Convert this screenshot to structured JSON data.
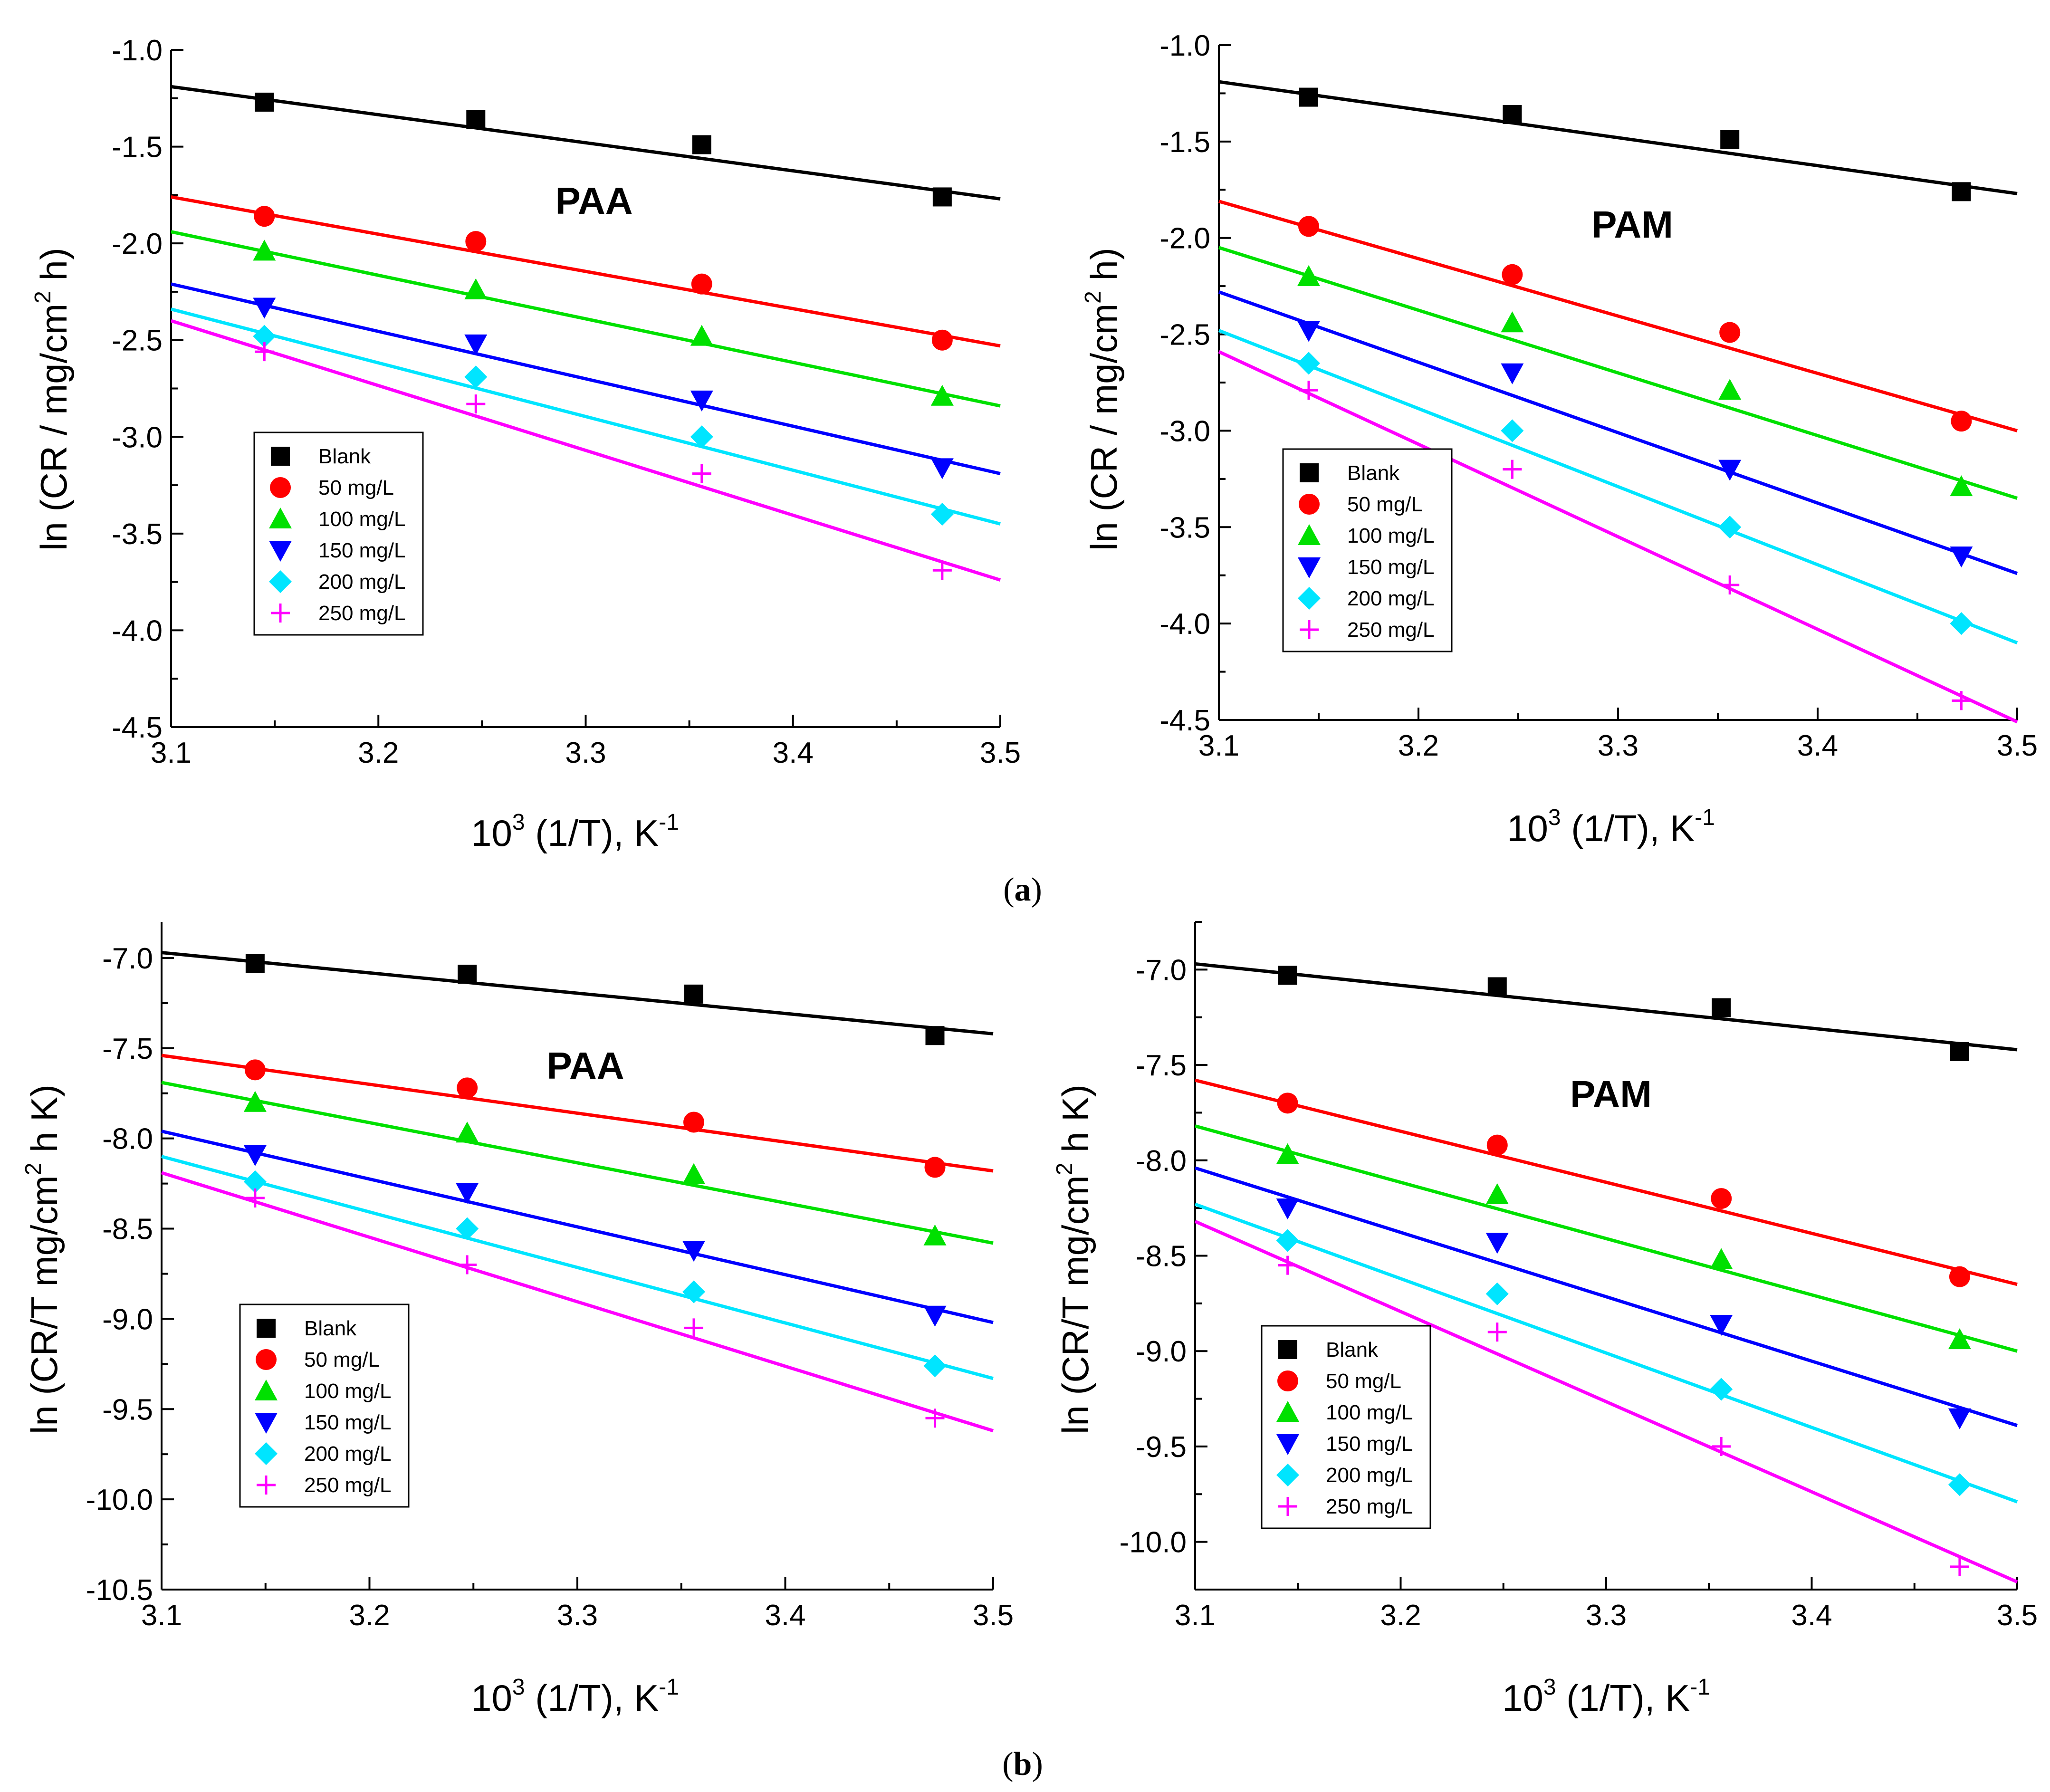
{
  "captions": [
    "a",
    "b"
  ],
  "legend": [
    "Blank",
    "50 mg/L",
    "100 mg/L",
    "150 mg/L",
    "200 mg/L",
    "250 mg/L"
  ],
  "colors": {
    "Blank": "#000000",
    "50 mg/L": "#ff0000",
    "100 mg/L": "#00e000",
    "150 mg/L": "#0000ff",
    "200 mg/L": "#00e5ff",
    "250 mg/L": "#ff00ff"
  },
  "markers": {
    "Blank": "square",
    "50 mg/L": "circle",
    "100 mg/L": "triangle-up",
    "150 mg/L": "triangle-down",
    "200 mg/L": "diamond",
    "250 mg/L": "plus"
  },
  "chart_data": [
    {
      "id": "a-paa",
      "type": "scatter",
      "title": "PAA",
      "xlabel": "10^3 (1/T), K^-1",
      "ylabel": "ln (CR / mg/cm^2 h)",
      "xlim": [
        3.1,
        3.5
      ],
      "ylim": [
        -4.5,
        -1.0
      ],
      "xticks": [
        "3.1",
        "3.2",
        "3.3",
        "3.4",
        "3.5"
      ],
      "yticks": [
        "-1.0",
        "-1.5",
        "-2.0",
        "-2.5",
        "-3.0",
        "-3.5",
        "-4.0",
        "-4.5"
      ],
      "x": [
        3.145,
        3.247,
        3.356,
        3.472
      ],
      "series": [
        {
          "name": "Blank",
          "values": [
            -1.27,
            -1.36,
            -1.49,
            -1.76
          ],
          "fit": [
            -1.19,
            -1.77
          ]
        },
        {
          "name": "50 mg/L",
          "values": [
            -1.86,
            -1.99,
            -2.21,
            -2.5
          ],
          "fit": [
            -1.76,
            -2.53
          ]
        },
        {
          "name": "100 mg/L",
          "values": [
            -2.04,
            -2.24,
            -2.48,
            -2.79
          ],
          "fit": [
            -1.94,
            -2.84
          ]
        },
        {
          "name": "150 mg/L",
          "values": [
            -2.33,
            -2.52,
            -2.81,
            -3.16
          ],
          "fit": [
            -2.21,
            -3.19
          ]
        },
        {
          "name": "200 mg/L",
          "values": [
            -2.48,
            -2.69,
            -3.0,
            -3.4
          ],
          "fit": [
            -2.34,
            -3.45
          ]
        },
        {
          "name": "250 mg/L",
          "values": [
            -2.56,
            -2.83,
            -3.19,
            -3.69
          ],
          "fit": [
            -2.4,
            -3.74
          ]
        }
      ]
    },
    {
      "id": "a-pam",
      "type": "scatter",
      "title": "PAM",
      "xlabel": "10^3 (1/T), K^-1",
      "ylabel": "ln (CR / mg/cm^2 h)",
      "xlim": [
        3.1,
        3.5
      ],
      "ylim": [
        -4.5,
        -1.0
      ],
      "xticks": [
        "3.1",
        "3.2",
        "3.3",
        "3.4",
        "3.5"
      ],
      "yticks": [
        "-1.0",
        "-1.5",
        "-2.0",
        "-2.5",
        "-3.0",
        "-3.5",
        "-4.0",
        "-4.5"
      ],
      "x": [
        3.145,
        3.247,
        3.356,
        3.472
      ],
      "series": [
        {
          "name": "Blank",
          "values": [
            -1.27,
            -1.36,
            -1.49,
            -1.76
          ],
          "fit": [
            -1.19,
            -1.77
          ]
        },
        {
          "name": "50 mg/L",
          "values": [
            -1.94,
            -2.19,
            -2.49,
            -2.95
          ],
          "fit": [
            -1.81,
            -3.0
          ]
        },
        {
          "name": "100 mg/L",
          "values": [
            -2.2,
            -2.44,
            -2.79,
            -3.29
          ],
          "fit": [
            -2.05,
            -3.35
          ]
        },
        {
          "name": "150 mg/L",
          "values": [
            -2.48,
            -2.7,
            -3.2,
            -3.65
          ],
          "fit": [
            -2.28,
            -3.74
          ]
        },
        {
          "name": "200 mg/L",
          "values": [
            -2.65,
            -3.0,
            -3.5,
            -4.0
          ],
          "fit": [
            -2.48,
            -4.1
          ]
        },
        {
          "name": "250 mg/L",
          "values": [
            -2.79,
            -3.2,
            -3.8,
            -4.4
          ],
          "fit": [
            -2.59,
            -4.51
          ]
        }
      ]
    },
    {
      "id": "b-paa",
      "type": "scatter",
      "title": "PAA",
      "xlabel": "10^3 (1/T), K^-1",
      "ylabel": "ln (CR/T mg/cm^2 h K)",
      "xlim": [
        3.1,
        3.5
      ],
      "ylim": [
        -10.5,
        -6.8
      ],
      "xticks": [
        "3.1",
        "3.2",
        "3.3",
        "3.4",
        "3.5"
      ],
      "yticks": [
        "-7.0",
        "-7.5",
        "-8.0",
        "-8.5",
        "-9.0",
        "-9.5",
        "-10.0",
        "-10.5"
      ],
      "x": [
        3.145,
        3.247,
        3.356,
        3.472
      ],
      "series": [
        {
          "name": "Blank",
          "values": [
            -7.03,
            -7.09,
            -7.2,
            -7.43
          ],
          "fit": [
            -6.97,
            -7.42
          ]
        },
        {
          "name": "50 mg/L",
          "values": [
            -7.62,
            -7.72,
            -7.91,
            -8.16
          ],
          "fit": [
            -7.54,
            -8.18
          ]
        },
        {
          "name": "100 mg/L",
          "values": [
            -7.8,
            -7.97,
            -8.2,
            -8.54
          ],
          "fit": [
            -7.69,
            -8.58
          ]
        },
        {
          "name": "150 mg/L",
          "values": [
            -8.09,
            -8.3,
            -8.62,
            -8.98
          ],
          "fit": [
            -7.96,
            -9.02
          ]
        },
        {
          "name": "200 mg/L",
          "values": [
            -8.24,
            -8.5,
            -8.85,
            -9.26
          ],
          "fit": [
            -8.1,
            -9.33
          ]
        },
        {
          "name": "250 mg/L",
          "values": [
            -8.33,
            -8.7,
            -9.05,
            -9.55
          ],
          "fit": [
            -8.19,
            -9.62
          ]
        }
      ]
    },
    {
      "id": "b-pam",
      "type": "scatter",
      "title": "PAM",
      "xlabel": "10^3 (1/T), K^-1",
      "ylabel": "ln (CR/T mg/cm^2 h K)",
      "xlim": [
        3.1,
        3.5
      ],
      "ylim": [
        -10.25,
        -6.75
      ],
      "xticks": [
        "3.1",
        "3.2",
        "3.3",
        "3.4",
        "3.5"
      ],
      "yticks": [
        "-7.0",
        "-7.5",
        "-8.0",
        "-8.5",
        "-9.0",
        "-9.5",
        "-10.0"
      ],
      "x": [
        3.145,
        3.247,
        3.356,
        3.472
      ],
      "series": [
        {
          "name": "Blank",
          "values": [
            -7.03,
            -7.09,
            -7.2,
            -7.43
          ],
          "fit": [
            -6.97,
            -7.42
          ]
        },
        {
          "name": "50 mg/L",
          "values": [
            -7.7,
            -7.92,
            -8.2,
            -8.61
          ],
          "fit": [
            -7.58,
            -8.65
          ]
        },
        {
          "name": "100 mg/L",
          "values": [
            -7.97,
            -8.18,
            -8.52,
            -8.94
          ],
          "fit": [
            -7.82,
            -9.0
          ]
        },
        {
          "name": "150 mg/L",
          "values": [
            -8.25,
            -8.43,
            -8.86,
            -9.35
          ],
          "fit": [
            -8.04,
            -9.39
          ]
        },
        {
          "name": "200 mg/L",
          "values": [
            -8.42,
            -8.7,
            -9.2,
            -9.7
          ],
          "fit": [
            -8.23,
            -9.79
          ]
        },
        {
          "name": "250 mg/L",
          "values": [
            -8.55,
            -8.9,
            -9.5,
            -10.13
          ],
          "fit": [
            -8.32,
            -10.21
          ]
        }
      ]
    }
  ]
}
